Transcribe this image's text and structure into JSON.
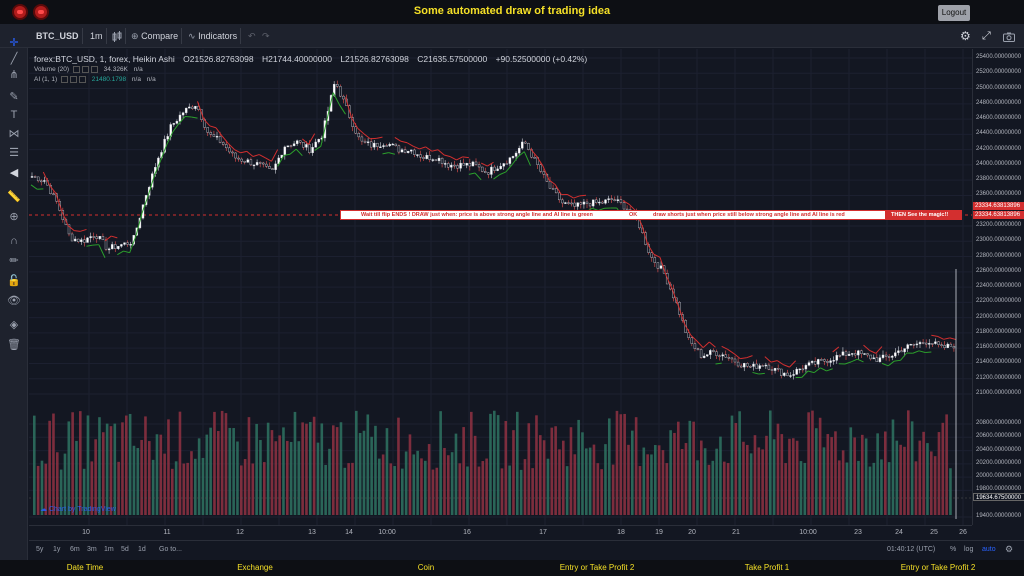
{
  "header": {
    "title": "Some automated draw of trading idea",
    "logout_label": "Logout"
  },
  "toolbar": {
    "symbol": "BTC_USD",
    "interval": "1m",
    "compare_label": "Compare",
    "indicators_label": "Indicators"
  },
  "legend": {
    "symbol_desc": "forex:BTC_USD, 1, forex, Heikin Ashi",
    "open": "O21526.82763098",
    "high": "H21744.40000000",
    "low": "L21526.82763098",
    "close": "C21635.57500000",
    "change": "+90.52500000 (+0.42%)",
    "volume_label": "Volume (20)",
    "volume_value": "34.326K",
    "volume_na": "n/a",
    "ai_label": "AI (1, 1)",
    "ai_value": "21480.1798",
    "ai_na1": "n/a",
    "ai_na2": "n/a"
  },
  "annotation": {
    "part1": "Wait till flip ENDS  !   DRAW just when:  price is above strong angle line and AI line is green",
    "part2": "OK",
    "part3": "draw shorts just when price still below strong angle line and AI line is red",
    "part4": "THEN See the magic!!"
  },
  "price_scale": {
    "ticks": [
      {
        "label": "25400.00000000",
        "value": 25400
      },
      {
        "label": "25200.00000000",
        "value": 25200
      },
      {
        "label": "25000.00000000",
        "value": 25000
      },
      {
        "label": "24800.00000000",
        "value": 24800
      },
      {
        "label": "24600.00000000",
        "value": 24600
      },
      {
        "label": "24400.00000000",
        "value": 24400
      },
      {
        "label": "24200.00000000",
        "value": 24200
      },
      {
        "label": "24000.00000000",
        "value": 24000
      },
      {
        "label": "23800.00000000",
        "value": 23800
      },
      {
        "label": "23600.00000000",
        "value": 23600
      },
      {
        "label": "23200.00000000",
        "value": 23200
      },
      {
        "label": "23000.00000000",
        "value": 23000
      },
      {
        "label": "22800.00000000",
        "value": 22800
      },
      {
        "label": "22600.00000000",
        "value": 22600
      },
      {
        "label": "22400.00000000",
        "value": 22400
      },
      {
        "label": "22200.00000000",
        "value": 22200
      },
      {
        "label": "22000.00000000",
        "value": 22000
      },
      {
        "label": "21800.00000000",
        "value": 21800
      },
      {
        "label": "21600.00000000",
        "value": 21600
      },
      {
        "label": "21400.00000000",
        "value": 21400
      },
      {
        "label": "21200.00000000",
        "value": 21200
      },
      {
        "label": "21000.00000000",
        "value": 21000
      },
      {
        "label": "20800.00000000",
        "value": 20800
      },
      {
        "label": "20600.00000000",
        "value": 20600
      },
      {
        "label": "20400.00000000",
        "value": 20400
      },
      {
        "label": "20200.00000000",
        "value": 20200
      },
      {
        "label": "20000.00000000",
        "value": 20000
      },
      {
        "label": "19800.00000000",
        "value": 19800
      },
      {
        "label": "19400.00000000",
        "value": 19400
      }
    ],
    "marker_top": "23334.63813896",
    "marker_bottom": "23334.63813896",
    "marker_volume": "19634.67500000",
    "colors": {
      "marker": "#d32f2f",
      "volume_marker": "#131722"
    }
  },
  "time_axis": [
    "10",
    "11",
    "12",
    "13",
    "14",
    "10:00",
    "16",
    "17",
    "18",
    "19",
    "20",
    "21",
    "10:00",
    "23",
    "24",
    "25",
    "26"
  ],
  "range_bar": {
    "ranges": [
      "5y",
      "1y",
      "6m",
      "3m",
      "1m",
      "5d",
      "1d"
    ],
    "goto": "Go to...",
    "clock": "01:40:12 (UTC)",
    "percent": "%",
    "log": "log",
    "auto": "auto"
  },
  "watermark": "Chart by TradingView",
  "footer": [
    "Date Time",
    "Exchange",
    "Coin",
    "Entry or Take Profit 2",
    "Take Profit 1",
    "Entry or Take Profit 2"
  ],
  "colors": {
    "up": "#26a69a",
    "down": "#ef5350",
    "accent": "#f5e027"
  },
  "chart_data": {
    "type": "candlestick",
    "price_path": [
      23850,
      23800,
      23500,
      23050,
      23000,
      23100,
      22900,
      22950,
      23000,
      23600,
      24100,
      24500,
      24700,
      24800,
      24400,
      24300,
      24100,
      24050,
      24000,
      23900,
      24250,
      24300,
      24200,
      24400,
      25100,
      24700,
      24300,
      24250,
      24300,
      24200,
      24200,
      24100,
      24100,
      24000,
      24000,
      24000,
      23900,
      24000,
      24100,
      24300,
      24000,
      23700,
      23500,
      23450,
      23500,
      23500,
      23550,
      23450,
      23250,
      22800,
      22600,
      22200,
      21700,
      21500,
      21550,
      21500,
      21400,
      21350,
      21400,
      21300,
      21250,
      21350,
      21400,
      21450,
      21500,
      21550,
      21500,
      21450,
      21500,
      21600,
      21650,
      21700,
      21600,
      21640
    ],
    "ai_line_note": "colored green above / red below",
    "volume_range": [
      19400,
      20800
    ]
  }
}
